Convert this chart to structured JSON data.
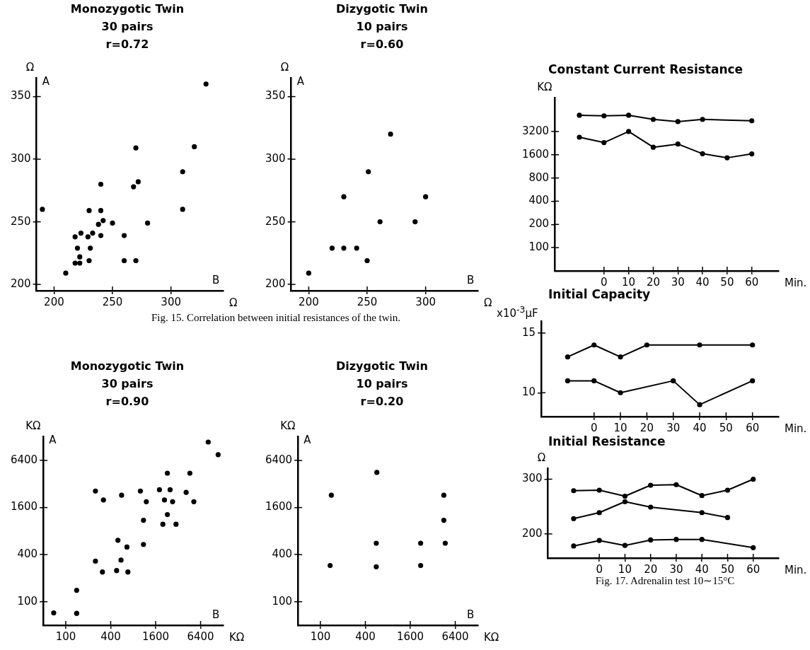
{
  "chart_data": [
    {
      "type": "scatter",
      "title": "Monozygotic Twin",
      "subtitle": "30 pairs",
      "xlabel": "Ω",
      "ylabel": "Ω",
      "annotations": [
        "r=0.72",
        "A",
        "B",
        "Fig. 15.  Correlation between initial resistances of the twin."
      ],
      "x": [
        190,
        210,
        218,
        223,
        220,
        218,
        222,
        222,
        229,
        233,
        231,
        230,
        230,
        238,
        242,
        240,
        240,
        240,
        250,
        260,
        260,
        270,
        268,
        272,
        270,
        280,
        310,
        310,
        320,
        330
      ],
      "values": [
        260,
        209,
        238,
        241,
        229,
        217,
        222,
        217,
        238,
        241,
        229,
        219,
        259,
        248,
        251,
        280,
        259,
        239,
        249,
        239,
        219,
        309,
        278,
        282,
        219,
        249,
        290,
        260,
        310,
        360
      ],
      "color": "#000000",
      "marker": "circle",
      "xlim": [
        185,
        345
      ],
      "ylim": [
        195,
        365
      ],
      "xticks": [
        200,
        250,
        300
      ],
      "yticks": [
        200,
        250,
        300,
        350
      ]
    },
    {
      "type": "scatter",
      "title": "Dizygotic Twin",
      "subtitle": "10 pairs",
      "xlabel": "Ω",
      "ylabel": "Ω",
      "annotations": [
        "r=0.60",
        "A",
        "B"
      ],
      "x": [
        200,
        220,
        230,
        241,
        230,
        251,
        250,
        261,
        270,
        291,
        300
      ],
      "values": [
        209,
        229,
        229,
        229,
        270,
        290,
        219,
        250,
        320,
        250,
        270
      ],
      "color": "#000000",
      "marker": "circle",
      "xlim": [
        185,
        345
      ],
      "ylim": [
        195,
        365
      ],
      "xticks": [
        200,
        250,
        300
      ],
      "yticks": [
        200,
        250,
        300,
        350
      ]
    },
    {
      "type": "scatter",
      "title": "Monozygotic Twin",
      "subtitle": "30 pairs",
      "xlabel": "KΩ",
      "ylabel": "KΩ",
      "annotations": [
        "r=0.90",
        "A",
        "B"
      ],
      "x": [
        69,
        140,
        140,
        250,
        310,
        480,
        550,
        680,
        500,
        660,
        1100,
        250,
        320,
        560,
        1000,
        1100,
        1200,
        1800,
        2100,
        2300,
        2500,
        2700,
        2300,
        2000,
        3000,
        4100,
        4600,
        5200,
        8100,
        11000
      ],
      "values": [
        72,
        71,
        140,
        330,
        240,
        250,
        340,
        240,
        610,
        500,
        540,
        2600,
        2000,
        2300,
        2600,
        1100,
        1900,
        2700,
        2000,
        4400,
        2700,
        1900,
        1300,
        980,
        980,
        2500,
        4400,
        1900,
        11000,
        7600
      ],
      "color": "#000000",
      "marker": "circle",
      "log": "xy",
      "xlim": [
        50,
        13000
      ],
      "ylim": [
        50,
        13000
      ],
      "xticks": [
        100,
        400,
        1600,
        6400
      ],
      "yticks": [
        100,
        400,
        1600,
        6400
      ]
    },
    {
      "type": "scatter",
      "title": "Dizygotic Twin",
      "subtitle": "10 pairs",
      "xlabel": "KΩ",
      "ylabel": "KΩ",
      "annotations": [
        "r=0.20",
        "A",
        "B"
      ],
      "x": [
        140,
        135,
        570,
        560,
        560,
        2200,
        2200,
        4500,
        4500,
        4700
      ],
      "values": [
        2300,
        290,
        4500,
        560,
        280,
        560,
        290,
        2300,
        1100,
        560
      ],
      "color": "#000000",
      "marker": "circle",
      "log": "xy",
      "xlim": [
        50,
        13000
      ],
      "ylim": [
        50,
        13000
      ],
      "xticks": [
        100,
        400,
        1600,
        6400
      ],
      "yticks": [
        100,
        400,
        1600,
        6400
      ]
    },
    {
      "type": "line",
      "title": "Constant Current Resistance",
      "xlabel": "Min.",
      "ylabel": "KΩ",
      "marker": "circle",
      "line_style": "solid",
      "log": "y",
      "series": [
        {
          "color": "#000000",
          "x": [
            -10,
            0,
            10,
            20,
            30,
            40,
            60
          ],
          "values": [
            5200,
            5100,
            5200,
            4600,
            4300,
            4600,
            4400
          ]
        },
        {
          "color": "#000000",
          "x": [
            -10,
            0,
            10,
            20,
            30,
            40,
            50,
            60
          ],
          "values": [
            2700,
            2300,
            3200,
            2000,
            2200,
            1650,
            1460,
            1640
          ]
        }
      ],
      "xlim": [
        -20,
        71
      ],
      "ylim": [
        50,
        8800
      ],
      "xticks": [
        0,
        10,
        20,
        30,
        40,
        50,
        60
      ],
      "yticks": [
        100,
        200,
        400,
        800,
        1600,
        3200
      ]
    },
    {
      "type": "line",
      "title": "Initial Capacity",
      "xlabel": "Min.",
      "ylabel": "x10$^{-3}$μF",
      "marker": "circle",
      "line_style": "solid",
      "series": [
        {
          "color": "#000000",
          "x": [
            -10,
            0,
            10,
            20,
            40,
            60
          ],
          "values": [
            13,
            14,
            13,
            14,
            14,
            14
          ]
        },
        {
          "color": "#000000",
          "x": [
            -10,
            0,
            10,
            30,
            40,
            60
          ],
          "values": [
            11,
            11,
            10,
            11,
            9,
            11
          ]
        }
      ],
      "xlim": [
        -20,
        70
      ],
      "ylim": [
        8,
        16
      ],
      "xticks": [
        0,
        10,
        20,
        30,
        40,
        50,
        60
      ],
      "yticks": [
        10,
        15
      ]
    },
    {
      "type": "line",
      "title": "Initial Resistance",
      "xlabel": "Min.",
      "ylabel": "Ω",
      "marker": "circle",
      "line_style": "solid",
      "annotations": [
        "Fig. 17.  Adrenalin test 10∼15°C"
      ],
      "series": [
        {
          "color": "#000000",
          "x": [
            -10,
            0,
            10,
            20,
            30,
            40,
            50,
            60
          ],
          "values": [
            279,
            280,
            269,
            289,
            290,
            270,
            280,
            300
          ]
        },
        {
          "color": "#000000",
          "x": [
            -10,
            0,
            10,
            20,
            40,
            50
          ],
          "values": [
            228,
            239,
            259,
            249,
            239,
            230
          ]
        },
        {
          "color": "#000000",
          "x": [
            -10,
            0,
            10,
            20,
            30,
            40,
            60
          ],
          "values": [
            178,
            188,
            179,
            189,
            190,
            190,
            175
          ]
        }
      ],
      "xlim": [
        -20,
        70
      ],
      "ylim": [
        156,
        320
      ],
      "xticks": [
        0,
        10,
        20,
        30,
        40,
        50,
        60
      ],
      "yticks": [
        200,
        300
      ]
    }
  ]
}
